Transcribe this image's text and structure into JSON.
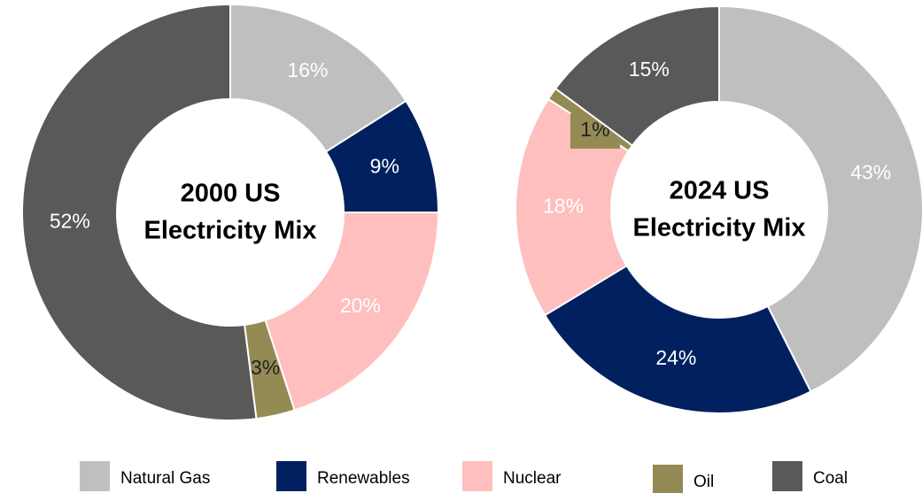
{
  "chart_data": [
    {
      "type": "donut",
      "title": [
        "2000 US",
        "Electricity Mix"
      ],
      "categories": [
        "Natural Gas",
        "Renewables",
        "Nuclear",
        "Oil",
        "Coal"
      ],
      "values": [
        16,
        9,
        20,
        3,
        52
      ],
      "value_labels": [
        "16%",
        "9%",
        "20%",
        "3%",
        "52%"
      ],
      "colors": [
        "#bfbfbf",
        "#002060",
        "#ffbfbf",
        "#948a54",
        "#595959"
      ]
    },
    {
      "type": "donut",
      "title": [
        "2024 US",
        "Electricity Mix"
      ],
      "categories": [
        "Natural Gas",
        "Renewables",
        "Nuclear",
        "Oil",
        "Coal"
      ],
      "values": [
        43,
        24,
        18,
        1,
        15
      ],
      "value_labels": [
        "43%",
        "24%",
        "18%",
        "1%",
        "15%"
      ],
      "colors": [
        "#bfbfbf",
        "#002060",
        "#ffbfbf",
        "#948a54",
        "#595959"
      ]
    }
  ]
}
